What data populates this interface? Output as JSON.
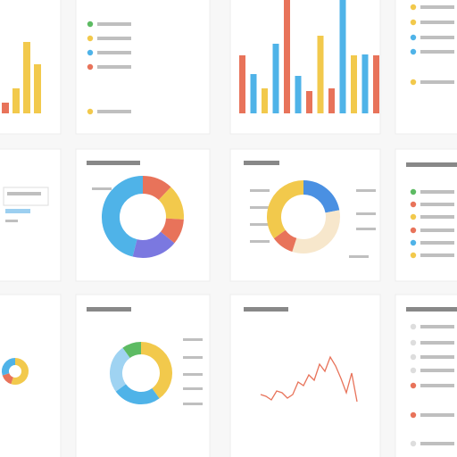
{
  "bars_left": {
    "colors": [
      "#e8735a",
      "#f2c94c",
      "#f2c94c",
      "#f2c94c"
    ],
    "values": [
      12,
      28,
      80,
      55
    ]
  },
  "bars_center": {
    "colors": [
      "#e8735a",
      "#4fb3e8",
      "#f2c94c",
      "#4fb3e8",
      "#e8735a",
      "#4fb3e8",
      "#e8735a",
      "#f2c94c",
      "#e8735a",
      "#4fb3e8",
      "#f2c94c",
      "#4fb3e8",
      "#e8735a"
    ],
    "values": [
      65,
      44,
      28,
      78,
      127,
      42,
      25,
      87,
      28,
      127,
      65,
      66,
      65
    ]
  },
  "donut_main": {
    "colors": [
      "#e8735a",
      "#f2c94c",
      "#e8735a",
      "#7b78e0",
      "#4fb3e8"
    ],
    "values": [
      12,
      14,
      10,
      18,
      46
    ]
  },
  "donut_right": {
    "colors": [
      "#4a90e2",
      "#f7e7cc",
      "#e8735a",
      "#f2c94c"
    ],
    "values": [
      22,
      33,
      10,
      35
    ]
  },
  "donut_small": {
    "colors": [
      "#f2c94c",
      "#e8735a",
      "#4fb3e8"
    ],
    "values": [
      55,
      15,
      30
    ]
  },
  "donut_bottom": {
    "colors": [
      "#f2c94c",
      "#4fb3e8",
      "#9fd3f2",
      "#5dbb63"
    ],
    "values": [
      40,
      25,
      25,
      10
    ]
  },
  "line": {
    "values": [
      18,
      16,
      12,
      22,
      20,
      14,
      18,
      32,
      28,
      40,
      34,
      52,
      44,
      60,
      50,
      36,
      20,
      42,
      10
    ]
  }
}
